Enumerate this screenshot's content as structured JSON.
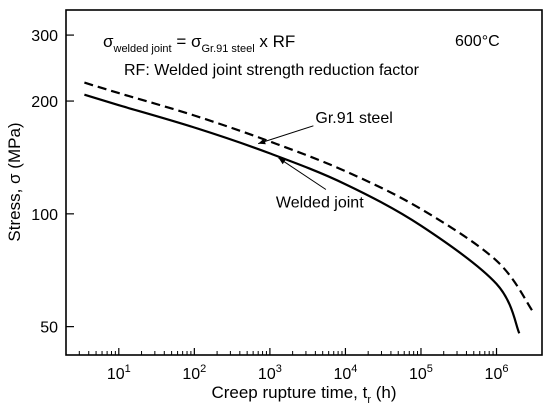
{
  "chart_data": {
    "type": "line",
    "xscale": "log",
    "yscale": "log",
    "xlim": [
      2.0,
      4000000
    ],
    "ylim": [
      42,
      350
    ],
    "x_ticks": [
      {
        "value": 10,
        "base": "10",
        "exp": "1"
      },
      {
        "value": 100,
        "base": "10",
        "exp": "2"
      },
      {
        "value": 1000,
        "base": "10",
        "exp": "3"
      },
      {
        "value": 10000,
        "base": "10",
        "exp": "4"
      },
      {
        "value": 100000,
        "base": "10",
        "exp": "5"
      },
      {
        "value": 1000000,
        "base": "10",
        "exp": "6"
      }
    ],
    "y_ticks": [
      {
        "value": 50,
        "label": "50"
      },
      {
        "value": 100,
        "label": "100"
      },
      {
        "value": 200,
        "label": "200"
      },
      {
        "value": 300,
        "label": "300"
      }
    ],
    "xlabel": {
      "main": "Creep rupture time, t",
      "sub": "r",
      "tail": " (h)"
    },
    "ylabel": "Stress, σ (MPa)",
    "grid": false,
    "series": [
      {
        "name": "Gr.91 steel",
        "style": "dashed",
        "points": [
          [
            3.5,
            224
          ],
          [
            10,
            210
          ],
          [
            100,
            183
          ],
          [
            1000,
            156
          ],
          [
            10000,
            130
          ],
          [
            100000,
            103
          ],
          [
            1000000,
            75
          ],
          [
            3000000,
            55
          ]
        ]
      },
      {
        "name": "Welded joint",
        "style": "solid",
        "points": [
          [
            3.5,
            208
          ],
          [
            10,
            195
          ],
          [
            100,
            170
          ],
          [
            1000,
            145
          ],
          [
            10000,
            120
          ],
          [
            100000,
            93
          ],
          [
            1000000,
            65
          ],
          [
            2000000,
            48
          ]
        ]
      }
    ],
    "annotations": {
      "equation": {
        "lhs": "σ",
        "lhs_sub": "welded joint",
        "op": " = ",
        "rhs": "σ",
        "rhs_sub": "Gr.91 steel",
        "tail": " x RF"
      },
      "rf_note": "RF: Welded joint strength reduction factor",
      "temperature": "600°C",
      "gr91_label": {
        "text": "Gr.91 steel",
        "x": 4000,
        "y": 175,
        "arrow_to": [
          700,
          154
        ]
      },
      "welded_label": {
        "text": "Welded joint",
        "x": 1200,
        "y": 104,
        "arrow_to": [
          1300,
          141
        ]
      }
    }
  }
}
